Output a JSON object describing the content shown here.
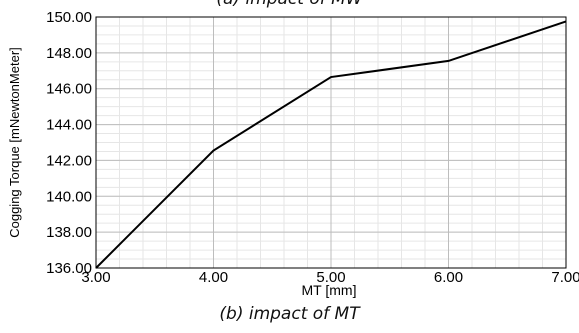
{
  "captions": {
    "top": "(a) impact of MW",
    "bottom": "(b) impact of MT"
  },
  "chart_data": {
    "type": "line",
    "xlabel": "MT [mm]",
    "ylabel": "Cogging Torque [mNewtonMeter]",
    "xlim": [
      3.0,
      7.0
    ],
    "ylim": [
      136.0,
      150.0
    ],
    "xticks": [
      "3.00",
      "4.00",
      "5.00",
      "6.00",
      "7.00"
    ],
    "yticks": [
      "136.00",
      "138.00",
      "140.00",
      "142.00",
      "144.00",
      "146.00",
      "148.00",
      "150.00"
    ],
    "grid": "major and minor",
    "series": [
      {
        "x": [
          3.0,
          4.0,
          5.0,
          6.0,
          7.0
        ],
        "y": [
          136.0,
          142.55,
          146.65,
          147.55,
          149.75
        ],
        "color": "#000000"
      }
    ]
  }
}
